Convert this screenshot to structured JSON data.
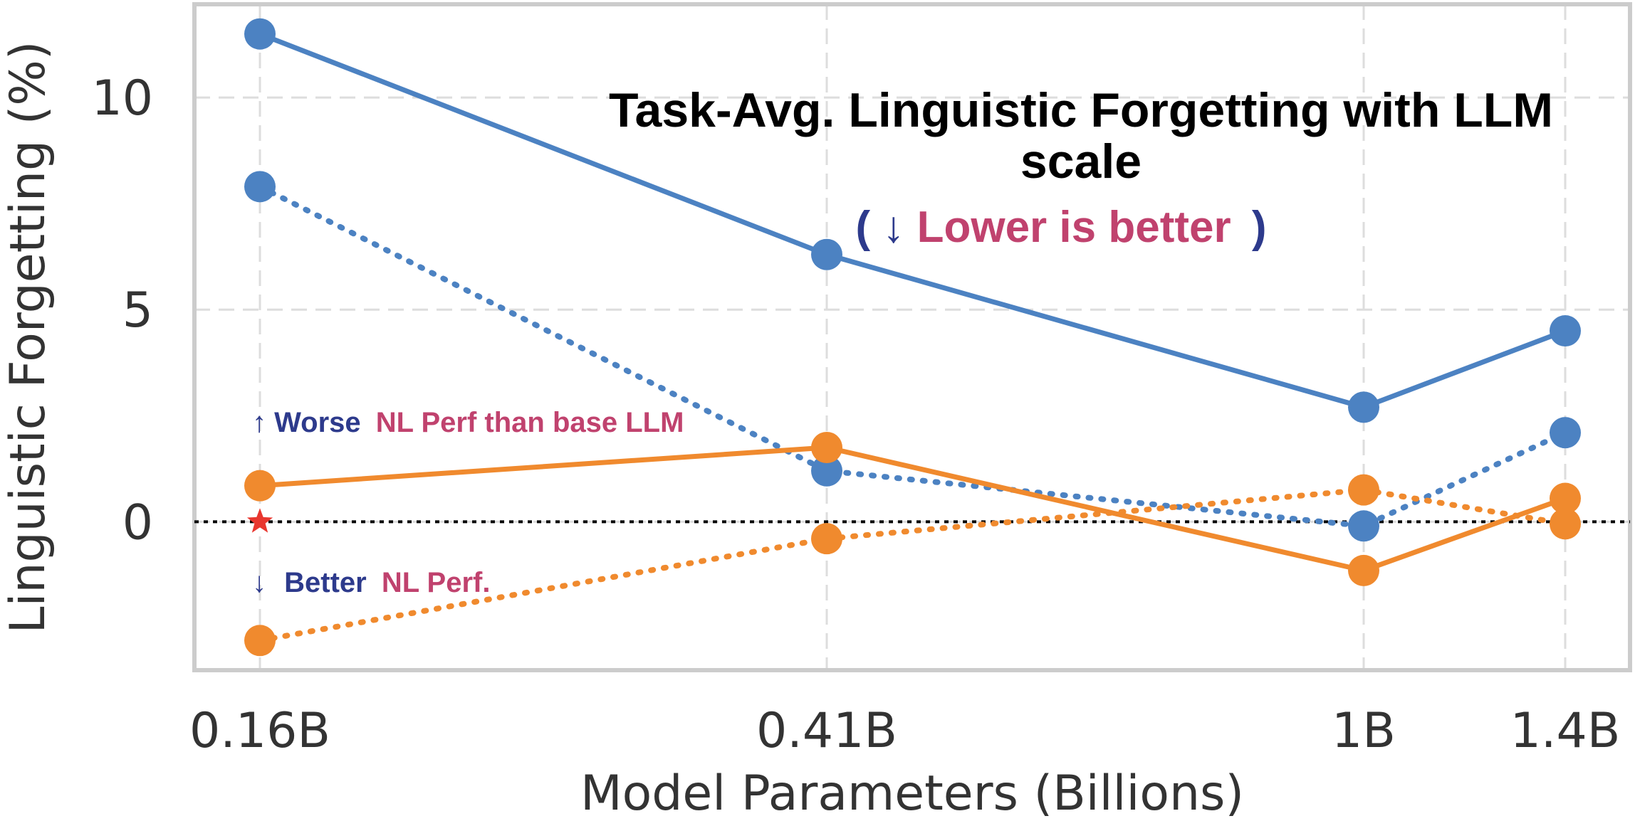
{
  "chart_data": {
    "type": "line",
    "title": "",
    "xlabel": "Model Parameters (Billions)",
    "ylabel": "Linguistic Forgetting (%)",
    "x": [
      0.16,
      0.41,
      1.0,
      1.4
    ],
    "x_tick_labels": [
      "0.16B",
      "0.41B",
      "1B",
      "1.4B"
    ],
    "y_ticks": [
      0,
      5,
      10
    ],
    "y_tick_labels": [
      "0",
      "5",
      "10"
    ],
    "ylim": [
      -3.5,
      12.2
    ],
    "grid": true,
    "reference_line": {
      "y": 0,
      "style": "dotted",
      "color": "#000000"
    },
    "baseline_marker": {
      "x": 0.16,
      "y": 0,
      "shape": "star",
      "color": "#e8372f"
    },
    "series": [
      {
        "color": "#4c82c2",
        "style": "solid",
        "values": [
          11.5,
          6.3,
          2.7,
          4.5
        ]
      },
      {
        "color": "#4c82c2",
        "style": "dotted",
        "values": [
          7.9,
          1.2,
          -0.1,
          2.1
        ]
      },
      {
        "color": "#f08a2e",
        "style": "solid",
        "values": [
          0.85,
          1.75,
          -1.15,
          0.55
        ]
      },
      {
        "color": "#f08a2e",
        "style": "dotted",
        "values": [
          -2.8,
          -0.4,
          0.75,
          -0.05
        ]
      }
    ]
  },
  "annotations": {
    "title_line1": "Task-Avg. Linguistic Forgetting with LLM",
    "title_line2": "scale",
    "lower_open": "(",
    "lower_arrow": "↓",
    "lower_text": "Lower is better",
    "lower_close": ")",
    "worse_arrow": "↑",
    "worse_word": "Worse",
    "worse_rest": "NL Perf than base LLM",
    "better_arrow": "↓",
    "better_word": "Better",
    "better_rest": "NL Perf."
  },
  "colors": {
    "navy": "#2d3a8c",
    "magenta": "#c0426e",
    "grid": "#dddddd",
    "frame": "#cccccc"
  }
}
